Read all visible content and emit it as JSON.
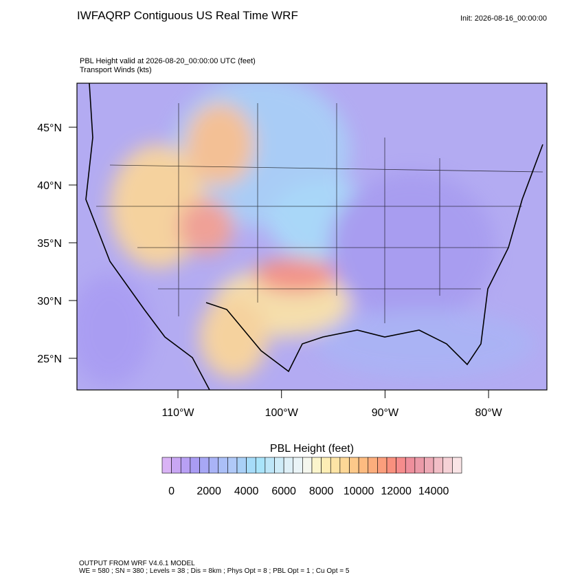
{
  "header": {
    "title": "IWFAQRP Contiguous US Real Time WRF",
    "init": "Init: 2026-08-16_00:00:00"
  },
  "plot": {
    "subtitle_1": "PBL Height valid at 2026-08-20_00:00:00 UTC   (feet)",
    "subtitle_2": "Transport Winds   (kts)",
    "lat_labels": [
      "45°N",
      "40°N",
      "35°N",
      "30°N",
      "25°N"
    ],
    "lon_labels": [
      "110°W",
      "100°W",
      "90°W",
      "80°W"
    ]
  },
  "colorbar": {
    "title": "PBL Height  (feet)",
    "labels": [
      0,
      2000,
      4000,
      6000,
      8000,
      10000,
      12000,
      14000
    ],
    "colors": [
      "#d9b3f5",
      "#c8a6f3",
      "#b8a0f4",
      "#a99cf3",
      "#a7a7f5",
      "#a9b3f6",
      "#abbff7",
      "#b0c9f8",
      "#a9d0f7",
      "#a6dcf9",
      "#a9e4fa",
      "#bde6f8",
      "#cfecf8",
      "#dff0f7",
      "#eaf4f7",
      "#f5f7ee",
      "#fbf5cc",
      "#fdeeb5",
      "#fde4a5",
      "#fdd796",
      "#fdc98a",
      "#fdbb80",
      "#fcad7c",
      "#fb9e7c",
      "#f9907e",
      "#f68c8c",
      "#ee8f9c",
      "#eb9aa8",
      "#edaab6",
      "#f1bec6",
      "#f5d1d6",
      "#f9e4e6"
    ]
  },
  "footer": {
    "line_1": "OUTPUT FROM WRF V4.6.1 MODEL",
    "line_2": "WE = 580 ; SN = 380 ; Levels = 38 ; Dis = 8km ; Phys Opt = 8 ; PBL Opt = 1 ; Cu Opt = 5"
  }
}
